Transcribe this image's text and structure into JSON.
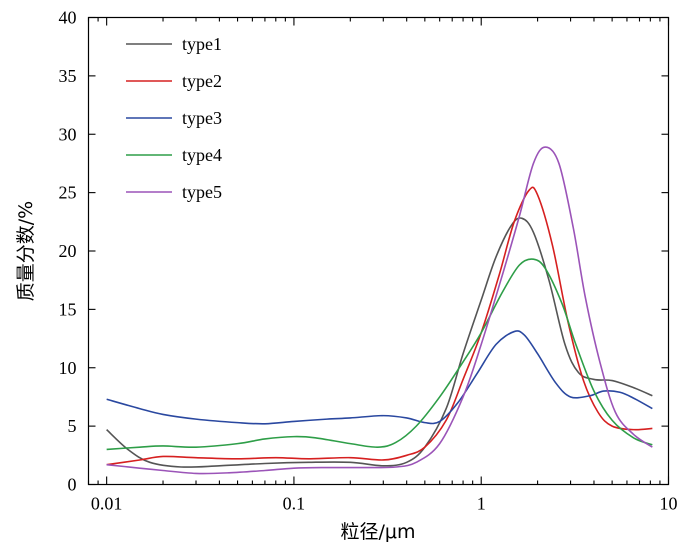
{
  "chart_data": {
    "type": "line",
    "title": "",
    "xlabel": "粒径/μm",
    "ylabel": "质量分数/%",
    "xscale": "log",
    "xlim": [
      0.008,
      10
    ],
    "ylim": [
      0,
      40
    ],
    "xticks": [
      0.01,
      0.1,
      1,
      10
    ],
    "xtick_labels": [
      "0.01",
      "0.1",
      "1",
      "10"
    ],
    "yticks": [
      0,
      5,
      10,
      15,
      20,
      25,
      30,
      35,
      40
    ],
    "ytick_labels": [
      "0",
      "5",
      "10",
      "15",
      "20",
      "25",
      "30",
      "35",
      "40"
    ],
    "grid": false,
    "legend_position": "top-left",
    "series": [
      {
        "name": "type1",
        "color": "#555555",
        "points": [
          [
            0.01,
            4.7
          ],
          [
            0.013,
            3.0
          ],
          [
            0.017,
            1.9
          ],
          [
            0.025,
            1.5
          ],
          [
            0.04,
            1.6
          ],
          [
            0.07,
            1.8
          ],
          [
            0.12,
            1.9
          ],
          [
            0.2,
            1.9
          ],
          [
            0.3,
            1.6
          ],
          [
            0.4,
            1.9
          ],
          [
            0.5,
            3.2
          ],
          [
            0.65,
            6.5
          ],
          [
            0.8,
            11.2
          ],
          [
            1.0,
            15.8
          ],
          [
            1.2,
            19.5
          ],
          [
            1.45,
            22.2
          ],
          [
            1.65,
            22.8
          ],
          [
            1.9,
            21.6
          ],
          [
            2.3,
            17.5
          ],
          [
            2.8,
            12.0
          ],
          [
            3.3,
            9.6
          ],
          [
            4.0,
            9.0
          ],
          [
            5.0,
            8.9
          ],
          [
            6.5,
            8.3
          ],
          [
            8.2,
            7.6
          ]
        ]
      },
      {
        "name": "type2",
        "color": "#d62020",
        "points": [
          [
            0.01,
            1.7
          ],
          [
            0.015,
            2.1
          ],
          [
            0.02,
            2.4
          ],
          [
            0.03,
            2.3
          ],
          [
            0.05,
            2.2
          ],
          [
            0.08,
            2.3
          ],
          [
            0.12,
            2.2
          ],
          [
            0.2,
            2.3
          ],
          [
            0.3,
            2.1
          ],
          [
            0.4,
            2.5
          ],
          [
            0.5,
            3.2
          ],
          [
            0.65,
            5.5
          ],
          [
            0.8,
            9.0
          ],
          [
            1.0,
            13.0
          ],
          [
            1.25,
            18.0
          ],
          [
            1.5,
            22.5
          ],
          [
            1.8,
            25.2
          ],
          [
            2.0,
            24.8
          ],
          [
            2.4,
            20.5
          ],
          [
            2.9,
            14.0
          ],
          [
            3.5,
            9.0
          ],
          [
            4.2,
            6.2
          ],
          [
            5.0,
            5.0
          ],
          [
            6.5,
            4.7
          ],
          [
            8.2,
            4.8
          ]
        ]
      },
      {
        "name": "type3",
        "color": "#2a48a0",
        "points": [
          [
            0.01,
            7.3
          ],
          [
            0.015,
            6.5
          ],
          [
            0.02,
            6.0
          ],
          [
            0.03,
            5.6
          ],
          [
            0.05,
            5.3
          ],
          [
            0.07,
            5.2
          ],
          [
            0.1,
            5.4
          ],
          [
            0.15,
            5.6
          ],
          [
            0.2,
            5.7
          ],
          [
            0.3,
            5.9
          ],
          [
            0.4,
            5.7
          ],
          [
            0.5,
            5.3
          ],
          [
            0.6,
            5.4
          ],
          [
            0.75,
            7.0
          ],
          [
            0.95,
            9.5
          ],
          [
            1.2,
            12.0
          ],
          [
            1.5,
            13.1
          ],
          [
            1.7,
            12.8
          ],
          [
            2.0,
            11.2
          ],
          [
            2.5,
            8.7
          ],
          [
            3.0,
            7.5
          ],
          [
            3.8,
            7.6
          ],
          [
            4.5,
            8.0
          ],
          [
            5.5,
            7.9
          ],
          [
            6.5,
            7.4
          ],
          [
            8.2,
            6.5
          ]
        ]
      },
      {
        "name": "type4",
        "color": "#2e9e48",
        "points": [
          [
            0.01,
            3.0
          ],
          [
            0.015,
            3.2
          ],
          [
            0.02,
            3.3
          ],
          [
            0.03,
            3.2
          ],
          [
            0.05,
            3.5
          ],
          [
            0.07,
            3.9
          ],
          [
            0.1,
            4.1
          ],
          [
            0.13,
            4.0
          ],
          [
            0.2,
            3.5
          ],
          [
            0.28,
            3.2
          ],
          [
            0.35,
            3.6
          ],
          [
            0.45,
            5.0
          ],
          [
            0.6,
            7.5
          ],
          [
            0.8,
            10.5
          ],
          [
            1.0,
            13.0
          ],
          [
            1.3,
            16.5
          ],
          [
            1.6,
            18.8
          ],
          [
            1.9,
            19.3
          ],
          [
            2.2,
            18.5
          ],
          [
            2.7,
            15.5
          ],
          [
            3.2,
            12.0
          ],
          [
            4.0,
            8.0
          ],
          [
            5.0,
            5.5
          ],
          [
            6.5,
            4.0
          ],
          [
            8.2,
            3.4
          ]
        ]
      },
      {
        "name": "type5",
        "color": "#9b54b8",
        "points": [
          [
            0.01,
            1.7
          ],
          [
            0.015,
            1.4
          ],
          [
            0.02,
            1.2
          ],
          [
            0.03,
            0.95
          ],
          [
            0.045,
            1.0
          ],
          [
            0.07,
            1.2
          ],
          [
            0.1,
            1.4
          ],
          [
            0.15,
            1.45
          ],
          [
            0.25,
            1.45
          ],
          [
            0.35,
            1.5
          ],
          [
            0.45,
            1.9
          ],
          [
            0.6,
            3.5
          ],
          [
            0.8,
            7.5
          ],
          [
            1.0,
            12.0
          ],
          [
            1.3,
            18.0
          ],
          [
            1.6,
            23.0
          ],
          [
            1.9,
            27.5
          ],
          [
            2.2,
            28.9
          ],
          [
            2.6,
            27.5
          ],
          [
            3.1,
            22.0
          ],
          [
            3.6,
            16.0
          ],
          [
            4.3,
            10.5
          ],
          [
            5.2,
            6.2
          ],
          [
            6.5,
            4.3
          ],
          [
            8.2,
            3.2
          ]
        ]
      }
    ]
  }
}
